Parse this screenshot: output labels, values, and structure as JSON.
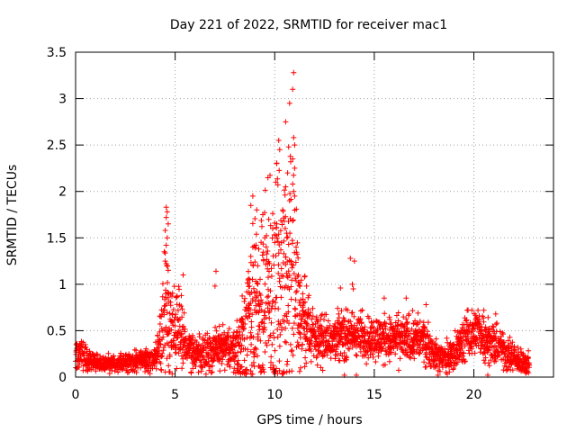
{
  "chart_data": {
    "type": "scatter",
    "title": "Day 221 of 2022, SRMTID for receiver mac1",
    "xlabel": "GPS time / hours",
    "ylabel": "SRMTID / TECUs",
    "xlim": [
      0,
      24
    ],
    "ylim": [
      0,
      3.5
    ],
    "x_ticks": [
      0,
      5,
      10,
      15,
      20
    ],
    "x_tick_labels": [
      "0",
      "5",
      "10",
      "15",
      "20"
    ],
    "y_ticks": [
      0,
      0.5,
      1,
      1.5,
      2,
      2.5,
      3,
      3.5
    ],
    "y_tick_labels": [
      "0",
      "0.5",
      "1",
      "1.5",
      "2",
      "2.5",
      "3",
      "3.5"
    ],
    "grid": true,
    "marker": "plus",
    "series": [
      {
        "name": "SRMTID",
        "color": "#ff0000",
        "profile_x": [
          0,
          0.3,
          0.6,
          1.0,
          2.0,
          3.0,
          3.5,
          4.0,
          4.3,
          4.5,
          4.7,
          5.0,
          5.3,
          5.6,
          6.0,
          7.0,
          7.5,
          8.0,
          8.5,
          9.0,
          9.5,
          10.0,
          10.3,
          10.6,
          10.9,
          11.2,
          11.6,
          12.0,
          12.5,
          13.0,
          14.0,
          15.0,
          16.0,
          17.0,
          17.5,
          18.0,
          18.5,
          19.0,
          19.5,
          20.0,
          20.5,
          21.0,
          21.5,
          22.0,
          22.5,
          22.8
        ],
        "profile_median": [
          0.25,
          0.25,
          0.2,
          0.15,
          0.15,
          0.17,
          0.18,
          0.2,
          0.4,
          0.75,
          0.6,
          0.55,
          0.5,
          0.3,
          0.25,
          0.28,
          0.3,
          0.3,
          0.45,
          0.65,
          0.75,
          0.9,
          1.0,
          1.1,
          1.2,
          0.7,
          0.5,
          0.45,
          0.4,
          0.45,
          0.45,
          0.42,
          0.4,
          0.42,
          0.4,
          0.25,
          0.2,
          0.25,
          0.4,
          0.5,
          0.45,
          0.35,
          0.3,
          0.2,
          0.15,
          0.15
        ],
        "profile_spread": [
          0.08,
          0.1,
          0.06,
          0.04,
          0.04,
          0.05,
          0.05,
          0.06,
          0.2,
          0.35,
          0.25,
          0.2,
          0.18,
          0.1,
          0.08,
          0.12,
          0.12,
          0.12,
          0.35,
          0.45,
          0.5,
          0.6,
          0.65,
          0.7,
          0.65,
          0.3,
          0.2,
          0.15,
          0.12,
          0.12,
          0.12,
          0.12,
          0.12,
          0.12,
          0.12,
          0.08,
          0.08,
          0.1,
          0.12,
          0.12,
          0.12,
          0.1,
          0.1,
          0.08,
          0.06,
          0.06
        ],
        "outliers": [
          {
            "x": 10.95,
            "y": 3.28
          },
          {
            "x": 10.9,
            "y": 3.1
          },
          {
            "x": 10.75,
            "y": 2.95
          },
          {
            "x": 10.55,
            "y": 2.75
          },
          {
            "x": 10.2,
            "y": 2.55
          },
          {
            "x": 10.25,
            "y": 2.45
          },
          {
            "x": 10.95,
            "y": 2.58
          },
          {
            "x": 11.0,
            "y": 2.5
          },
          {
            "x": 10.7,
            "y": 2.48
          },
          {
            "x": 10.9,
            "y": 2.35
          },
          {
            "x": 10.1,
            "y": 2.3
          },
          {
            "x": 10.8,
            "y": 2.32
          },
          {
            "x": 11.0,
            "y": 2.25
          },
          {
            "x": 10.65,
            "y": 2.2
          },
          {
            "x": 10.05,
            "y": 2.1
          },
          {
            "x": 10.9,
            "y": 2.08
          },
          {
            "x": 10.55,
            "y": 2.05
          },
          {
            "x": 10.95,
            "y": 2.0
          },
          {
            "x": 11.0,
            "y": 1.95
          },
          {
            "x": 10.75,
            "y": 1.9
          },
          {
            "x": 8.8,
            "y": 1.85
          },
          {
            "x": 8.9,
            "y": 1.95
          },
          {
            "x": 9.1,
            "y": 1.8
          },
          {
            "x": 9.4,
            "y": 1.75
          },
          {
            "x": 9.7,
            "y": 1.7
          },
          {
            "x": 9.9,
            "y": 1.6
          },
          {
            "x": 10.1,
            "y": 1.65
          },
          {
            "x": 10.4,
            "y": 1.8
          },
          {
            "x": 10.6,
            "y": 1.55
          },
          {
            "x": 8.9,
            "y": 1.4
          },
          {
            "x": 9.2,
            "y": 1.38
          },
          {
            "x": 8.8,
            "y": 1.3
          },
          {
            "x": 9.5,
            "y": 1.5
          },
          {
            "x": 10.0,
            "y": 1.45
          },
          {
            "x": 4.55,
            "y": 1.83
          },
          {
            "x": 4.6,
            "y": 1.78
          },
          {
            "x": 4.55,
            "y": 1.72
          },
          {
            "x": 4.65,
            "y": 1.65
          },
          {
            "x": 4.5,
            "y": 1.58
          },
          {
            "x": 4.6,
            "y": 1.5
          },
          {
            "x": 4.55,
            "y": 1.42
          },
          {
            "x": 4.45,
            "y": 1.35
          },
          {
            "x": 4.5,
            "y": 1.25
          },
          {
            "x": 4.65,
            "y": 1.15
          },
          {
            "x": 5.4,
            "y": 1.1
          },
          {
            "x": 7.05,
            "y": 1.14
          },
          {
            "x": 7.0,
            "y": 0.98
          },
          {
            "x": 13.8,
            "y": 1.28
          },
          {
            "x": 14.0,
            "y": 1.25
          },
          {
            "x": 13.9,
            "y": 1.0
          },
          {
            "x": 13.95,
            "y": 0.95
          },
          {
            "x": 11.5,
            "y": 1.08
          },
          {
            "x": 11.6,
            "y": 0.98
          },
          {
            "x": 13.3,
            "y": 0.96
          },
          {
            "x": 15.5,
            "y": 0.85
          },
          {
            "x": 16.6,
            "y": 0.85
          },
          {
            "x": 17.6,
            "y": 0.78
          },
          {
            "x": 19.9,
            "y": 0.72
          },
          {
            "x": 20.5,
            "y": 0.72
          },
          {
            "x": 21.1,
            "y": 0.68
          },
          {
            "x": 13.5,
            "y": 0.02
          },
          {
            "x": 14.1,
            "y": 0.02
          },
          {
            "x": 18.2,
            "y": 0.02
          },
          {
            "x": 20.7,
            "y": 0.02
          },
          {
            "x": 9.3,
            "y": 0.05
          },
          {
            "x": 11.3,
            "y": 0.1
          },
          {
            "x": 9.2,
            "y": 0.12
          },
          {
            "x": 11.25,
            "y": 0.06
          },
          {
            "x": 16.3,
            "y": 0.2
          },
          {
            "x": 17.8,
            "y": 0.15
          }
        ]
      }
    ]
  }
}
